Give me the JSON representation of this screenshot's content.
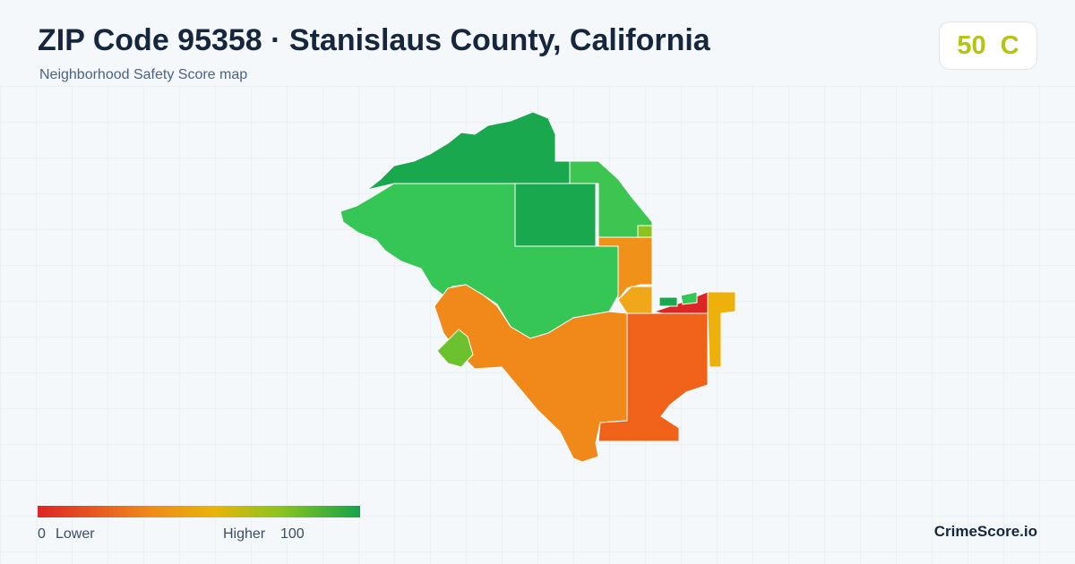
{
  "header": {
    "title": "ZIP Code 95358 · Stanislaus County, California",
    "subtitle": "Neighborhood Safety Score map",
    "score": 50,
    "grade": "C"
  },
  "legend": {
    "min": 0,
    "low_label": "Lower",
    "high_label": "Higher",
    "max": 100
  },
  "footer": {
    "brand": "CrimeScore.io"
  }
}
